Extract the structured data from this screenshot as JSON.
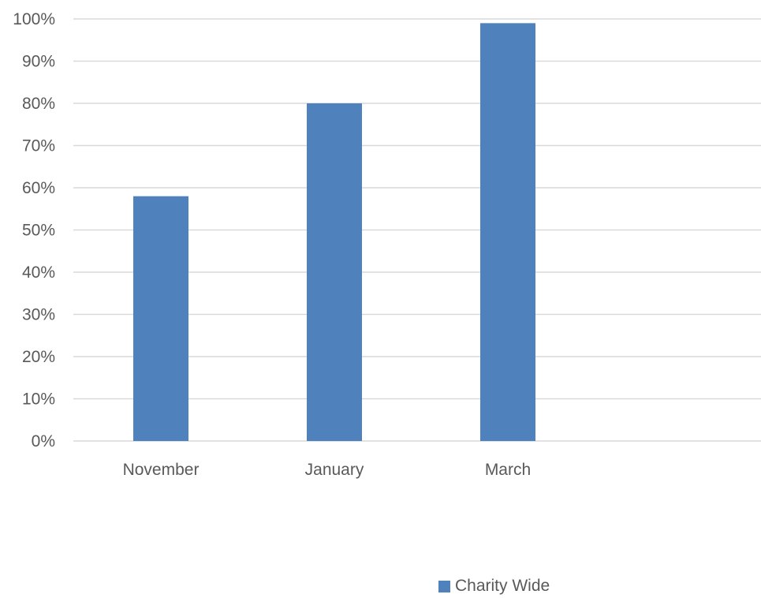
{
  "chart_data": {
    "type": "bar",
    "categories": [
      "November",
      "January",
      "March"
    ],
    "series": [
      {
        "name": "Charity Wide",
        "values": [
          58,
          80,
          99
        ],
        "color": "#4F81BD"
      }
    ],
    "ylim": [
      0,
      100
    ],
    "yticks": [
      0,
      10,
      20,
      30,
      40,
      50,
      60,
      70,
      80,
      90,
      100
    ],
    "ytick_labels": [
      "0%",
      "10%",
      "20%",
      "30%",
      "40%",
      "50%",
      "60%",
      "70%",
      "80%",
      "90%",
      "100%"
    ],
    "grid": true,
    "legend_position": "bottom",
    "gridline_color": "#D9D9D9",
    "text_color": "#595959"
  }
}
